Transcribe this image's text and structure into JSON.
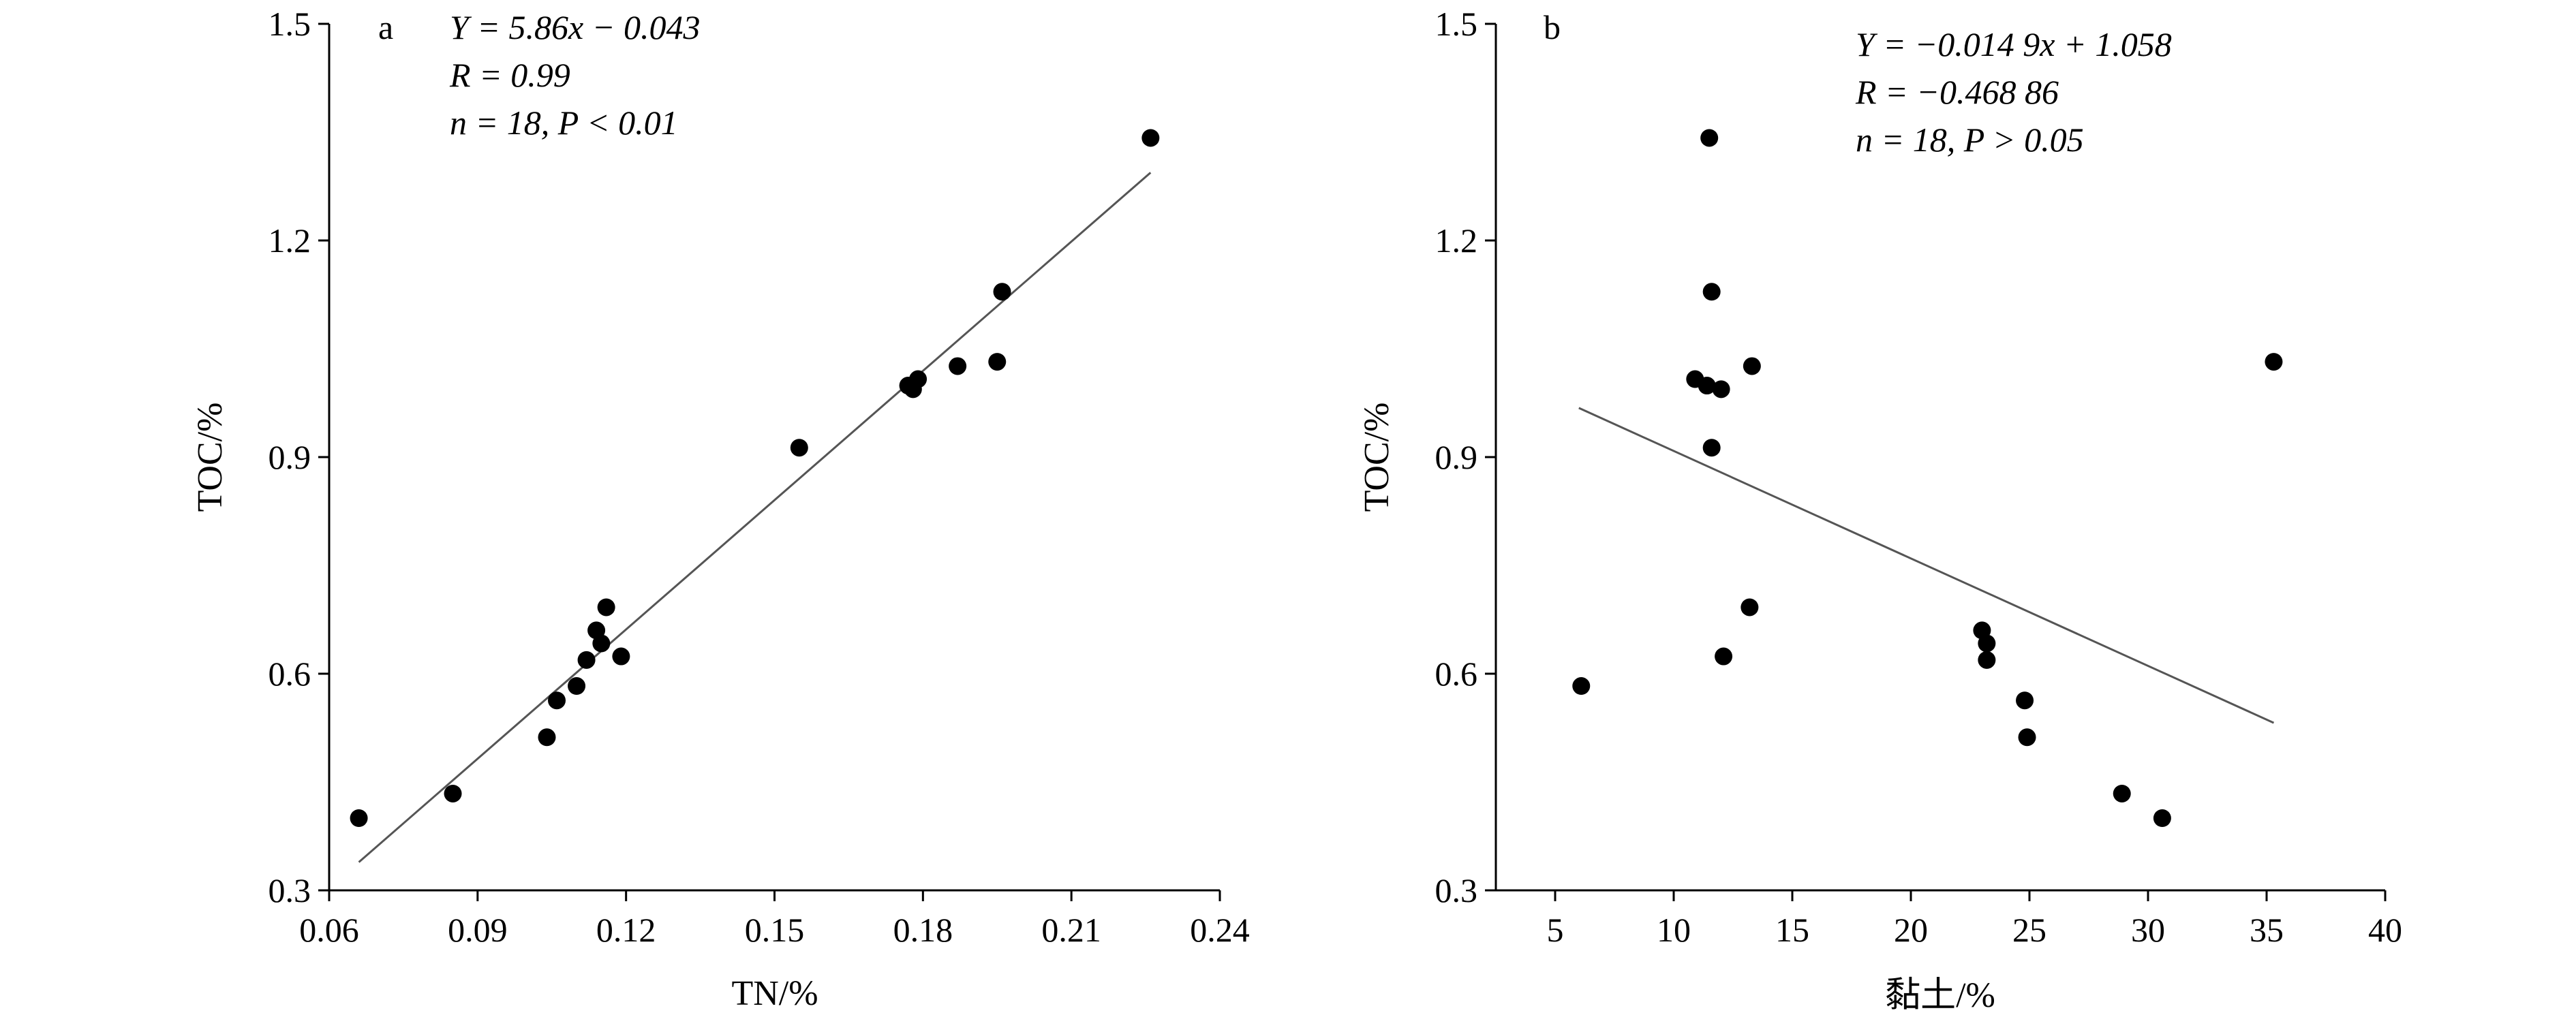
{
  "chart_data": [
    {
      "type": "scatter",
      "panel_label": "a",
      "xlabel": "TN/%",
      "ylabel": "TOC/%",
      "xlim": [
        0.06,
        0.24
      ],
      "ylim": [
        0.3,
        1.5
      ],
      "xticks": [
        0.06,
        0.09,
        0.12,
        0.15,
        0.18,
        0.21,
        0.24
      ],
      "xtick_labels": [
        "0.06",
        "0.09",
        "0.12",
        "0.15",
        "0.18",
        "0.21",
        "0.24"
      ],
      "yticks": [
        0.3,
        0.6,
        0.9,
        1.2,
        1.5
      ],
      "ytick_labels": [
        "0.3",
        "0.6",
        "0.9",
        "1.2",
        "1.5"
      ],
      "annotation": {
        "equation": "Y = 5.86x − 0.043",
        "r_value": "R = 0.99",
        "n_and_p": "n = 18, P < 0.01"
      },
      "fit_line": {
        "x": [
          0.066,
          0.226
        ],
        "y": [
          0.339,
          1.294
        ]
      },
      "points": [
        {
          "x": 0.066,
          "y": 0.4
        },
        {
          "x": 0.085,
          "y": 0.434
        },
        {
          "x": 0.104,
          "y": 0.512
        },
        {
          "x": 0.106,
          "y": 0.563
        },
        {
          "x": 0.11,
          "y": 0.583
        },
        {
          "x": 0.112,
          "y": 0.619
        },
        {
          "x": 0.114,
          "y": 0.66
        },
        {
          "x": 0.115,
          "y": 0.642
        },
        {
          "x": 0.116,
          "y": 0.692
        },
        {
          "x": 0.119,
          "y": 0.624
        },
        {
          "x": 0.155,
          "y": 0.913
        },
        {
          "x": 0.177,
          "y": 0.999
        },
        {
          "x": 0.178,
          "y": 0.994
        },
        {
          "x": 0.179,
          "y": 1.008
        },
        {
          "x": 0.187,
          "y": 1.026
        },
        {
          "x": 0.195,
          "y": 1.032
        },
        {
          "x": 0.196,
          "y": 1.129
        },
        {
          "x": 0.226,
          "y": 1.342
        }
      ]
    },
    {
      "type": "scatter",
      "panel_label": "b",
      "xlabel": "黏土/%",
      "ylabel": "TOC/%",
      "xlim": [
        2.5,
        40
      ],
      "ylim": [
        0.3,
        1.5
      ],
      "xticks": [
        5,
        10,
        15,
        20,
        25,
        30,
        35,
        40
      ],
      "xtick_labels": [
        "5",
        "10",
        "15",
        "20",
        "25",
        "30",
        "35",
        "40"
      ],
      "yticks": [
        0.3,
        0.6,
        0.9,
        1.2,
        1.5
      ],
      "ytick_labels": [
        "0.3",
        "0.6",
        "0.9",
        "1.2",
        "1.5"
      ],
      "annotation": {
        "equation": "Y = −0.014 9x + 1.058",
        "r_value": "R = −0.468 86",
        "n_and_p": "n = 18, P > 0.05"
      },
      "fit_line": {
        "x": [
          6.0,
          35.3
        ],
        "y": [
          0.968,
          0.532
        ]
      },
      "points": [
        {
          "x": 6.1,
          "y": 0.583
        },
        {
          "x": 10.9,
          "y": 1.008
        },
        {
          "x": 11.4,
          "y": 0.999
        },
        {
          "x": 11.5,
          "y": 1.342
        },
        {
          "x": 11.6,
          "y": 1.129
        },
        {
          "x": 11.6,
          "y": 0.913
        },
        {
          "x": 12.0,
          "y": 0.994
        },
        {
          "x": 12.1,
          "y": 0.624
        },
        {
          "x": 13.2,
          "y": 0.692
        },
        {
          "x": 13.3,
          "y": 1.026
        },
        {
          "x": 23.0,
          "y": 0.66
        },
        {
          "x": 23.2,
          "y": 0.642
        },
        {
          "x": 23.2,
          "y": 0.619
        },
        {
          "x": 24.8,
          "y": 0.563
        },
        {
          "x": 24.9,
          "y": 0.512
        },
        {
          "x": 28.9,
          "y": 0.434
        },
        {
          "x": 30.6,
          "y": 0.4
        },
        {
          "x": 35.3,
          "y": 1.032
        }
      ]
    }
  ]
}
